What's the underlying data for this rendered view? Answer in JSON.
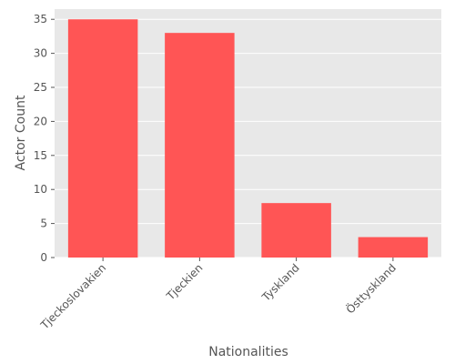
{
  "chart_data": {
    "type": "bar",
    "categories": [
      "Tjeckoslovakien",
      "Tjeckien",
      "Tyskland",
      "Östtyskland"
    ],
    "values": [
      35,
      33,
      8,
      3
    ],
    "xlabel": "Nationalities",
    "ylabel": "Actor Count",
    "ylim": [
      0,
      36.5
    ],
    "yticks": [
      0,
      5,
      10,
      15,
      20,
      25,
      30,
      35
    ],
    "grid": true,
    "legend": "none",
    "colors": {
      "bar": "#ff5555",
      "plot_background": "#e8e8e8",
      "grid": "#ffffff",
      "text": "#555555"
    }
  }
}
